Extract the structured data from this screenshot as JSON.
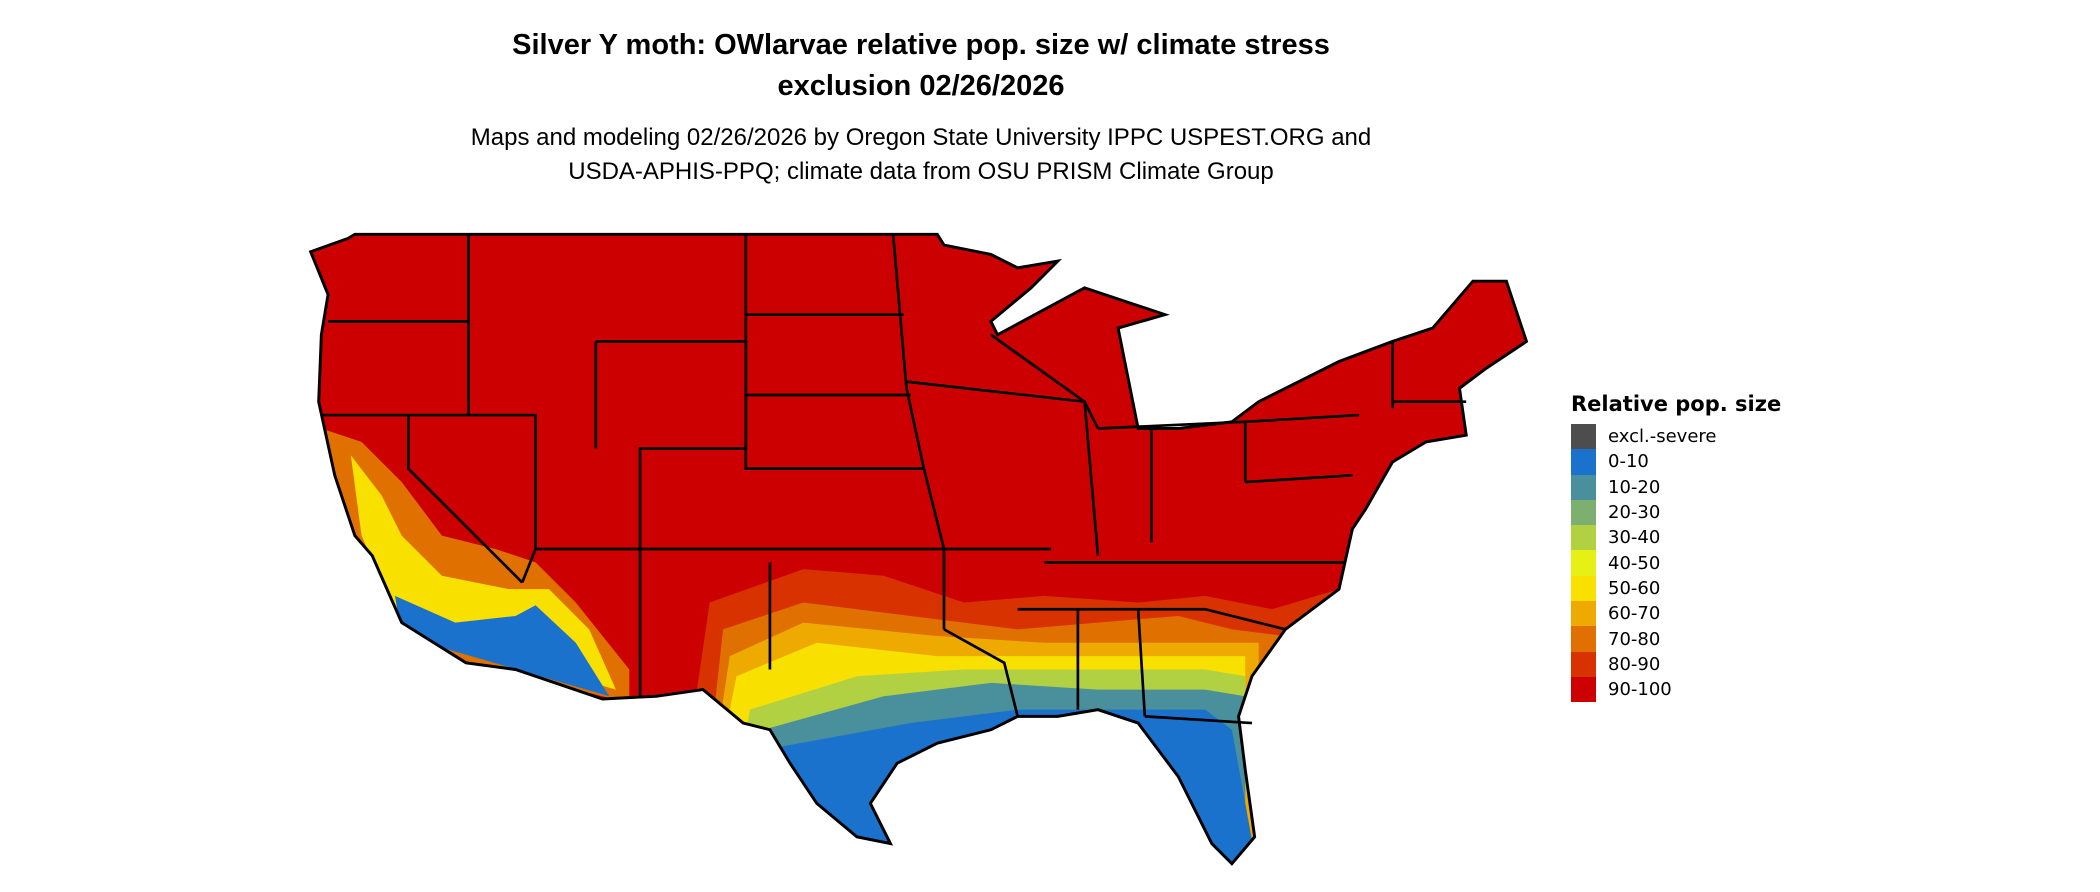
{
  "title": {
    "line1": "Silver Y moth: OWlarvae relative pop. size w/ climate stress",
    "line2": "exclusion 02/26/2026"
  },
  "subtitle": {
    "line1": "Maps and modeling 02/26/2026 by Oregon State University IPPC USPEST.ORG and",
    "line2": "USDA-APHIS-PPQ; climate data from OSU PRISM Climate Group"
  },
  "legend": {
    "title": "Relative pop. size",
    "items": [
      {
        "label": "excl.-severe",
        "color": "#4d4d4d"
      },
      {
        "label": "0-10",
        "color": "#1a72cc"
      },
      {
        "label": "10-20",
        "color": "#4a8f9c"
      },
      {
        "label": "20-30",
        "color": "#7db070"
      },
      {
        "label": "30-40",
        "color": "#b2d142"
      },
      {
        "label": "40-50",
        "color": "#e6f014"
      },
      {
        "label": "50-60",
        "color": "#f8e000"
      },
      {
        "label": "60-70",
        "color": "#eeaa00"
      },
      {
        "label": "70-80",
        "color": "#e07000"
      },
      {
        "label": "80-90",
        "color": "#d83200"
      },
      {
        "label": "90-100",
        "color": "#cc0000"
      }
    ]
  }
}
